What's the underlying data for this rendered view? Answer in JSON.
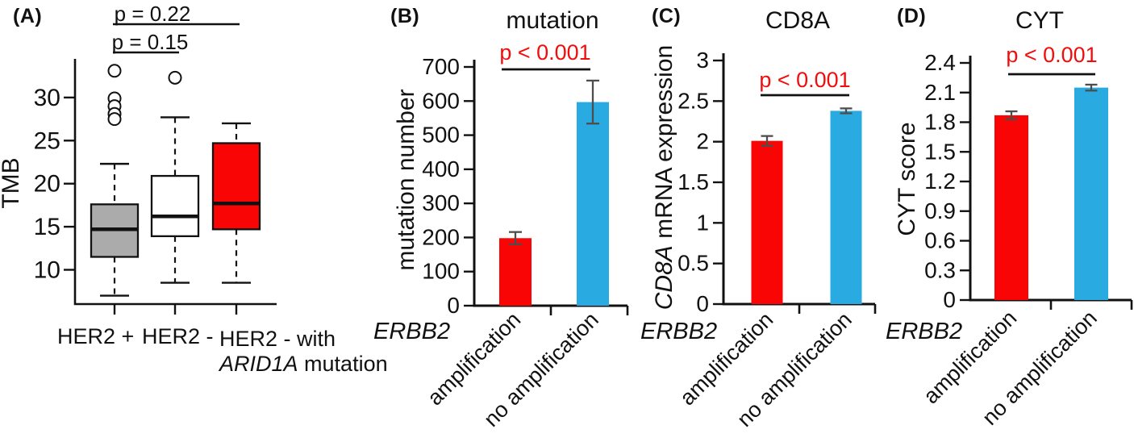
{
  "colors": {
    "red": "#FA0505",
    "blue": "#29ABE2",
    "gray": "#ABABAB",
    "white": "#FFFFFF",
    "black": "#111111",
    "error_bar": "#4D4D4D",
    "p_value_red": "#F20D0D",
    "background": "#FFFFFF"
  },
  "chart_data": [
    {
      "id": "A",
      "panel_label": "(A)",
      "type": "box",
      "title": "",
      "ylabel": "TMB",
      "xlabel": "",
      "ylim": [
        6,
        34.5
      ],
      "yticks": [
        "10",
        "15",
        "20",
        "25",
        "30"
      ],
      "grid": false,
      "xtick_labels": [
        {
          "text": "HER2 +"
        },
        {
          "text": "HER2 -"
        },
        {
          "line1": "HER2 - with",
          "gene": "ARID1A",
          "rest": " mutation"
        }
      ],
      "groups": [
        {
          "name": "HER2 +",
          "color": "#ABABAB",
          "whisker_low": 7.0,
          "q1": 11.5,
          "median": 14.7,
          "q3": 17.6,
          "whisker_high": 22.3,
          "outliers": [
            33.1,
            29.9,
            29.0,
            28.1,
            27.5
          ]
        },
        {
          "name": "HER2 -",
          "color": "#FFFFFF",
          "whisker_low": 8.5,
          "q1": 13.9,
          "median": 16.2,
          "q3": 20.9,
          "whisker_high": 27.7,
          "outliers": [
            32.3
          ]
        },
        {
          "name": "HER2 - with ARID1A mutation",
          "color": "#FA0505",
          "whisker_low": 8.5,
          "q1": 14.7,
          "median": 17.7,
          "q3": 24.7,
          "whisker_high": 27.0,
          "outliers": []
        }
      ],
      "comparisons": [
        {
          "label": "p = 0.22",
          "from": 0,
          "to": 2
        },
        {
          "label": "p = 0.15",
          "from": 0,
          "to": 1
        }
      ]
    },
    {
      "id": "B",
      "panel_label": "(B)",
      "type": "bar",
      "title": "mutation",
      "ylabel": "mutation number",
      "xlabel": "ERBB2",
      "ylim": [
        0,
        700
      ],
      "yticks": [
        "0",
        "100",
        "200",
        "300",
        "400",
        "500",
        "600",
        "700"
      ],
      "grid": false,
      "categories": [
        "amplification",
        "no amplification"
      ],
      "values": [
        198,
        597
      ],
      "errors": [
        18,
        63
      ],
      "colors": [
        "#FA0505",
        "#29ABE2"
      ],
      "significance": {
        "label": "p < 0.001"
      }
    },
    {
      "id": "C",
      "panel_label": "(C)",
      "type": "bar",
      "title": "CD8A",
      "ylabel_gene": "CD8A",
      "ylabel_rest": " mRNA expression",
      "xlabel": "ERBB2",
      "ylim": [
        0,
        3
      ],
      "yticks": [
        "0",
        "0.5",
        "1",
        "1.5",
        "2",
        "2.5",
        "3"
      ],
      "grid": false,
      "categories": [
        "amplification",
        "no amplification"
      ],
      "values": [
        2.01,
        2.38
      ],
      "errors": [
        0.06,
        0.03
      ],
      "colors": [
        "#FA0505",
        "#29ABE2"
      ],
      "significance": {
        "label": "p < 0.001"
      }
    },
    {
      "id": "D",
      "panel_label": "(D)",
      "type": "bar",
      "title": "CYT",
      "ylabel": "CYT score",
      "xlabel": "ERBB2",
      "ylim": [
        0,
        2.4
      ],
      "yticks": [
        "0",
        "0.3",
        "0.6",
        "0.9",
        "1.2",
        "1.5",
        "1.8",
        "2.1",
        "2.4"
      ],
      "grid": false,
      "categories": [
        "amplification",
        "no amplification"
      ],
      "values": [
        1.87,
        2.15
      ],
      "errors": [
        0.04,
        0.03
      ],
      "colors": [
        "#FA0505",
        "#29ABE2"
      ],
      "significance": {
        "label": "p < 0.001"
      }
    }
  ]
}
